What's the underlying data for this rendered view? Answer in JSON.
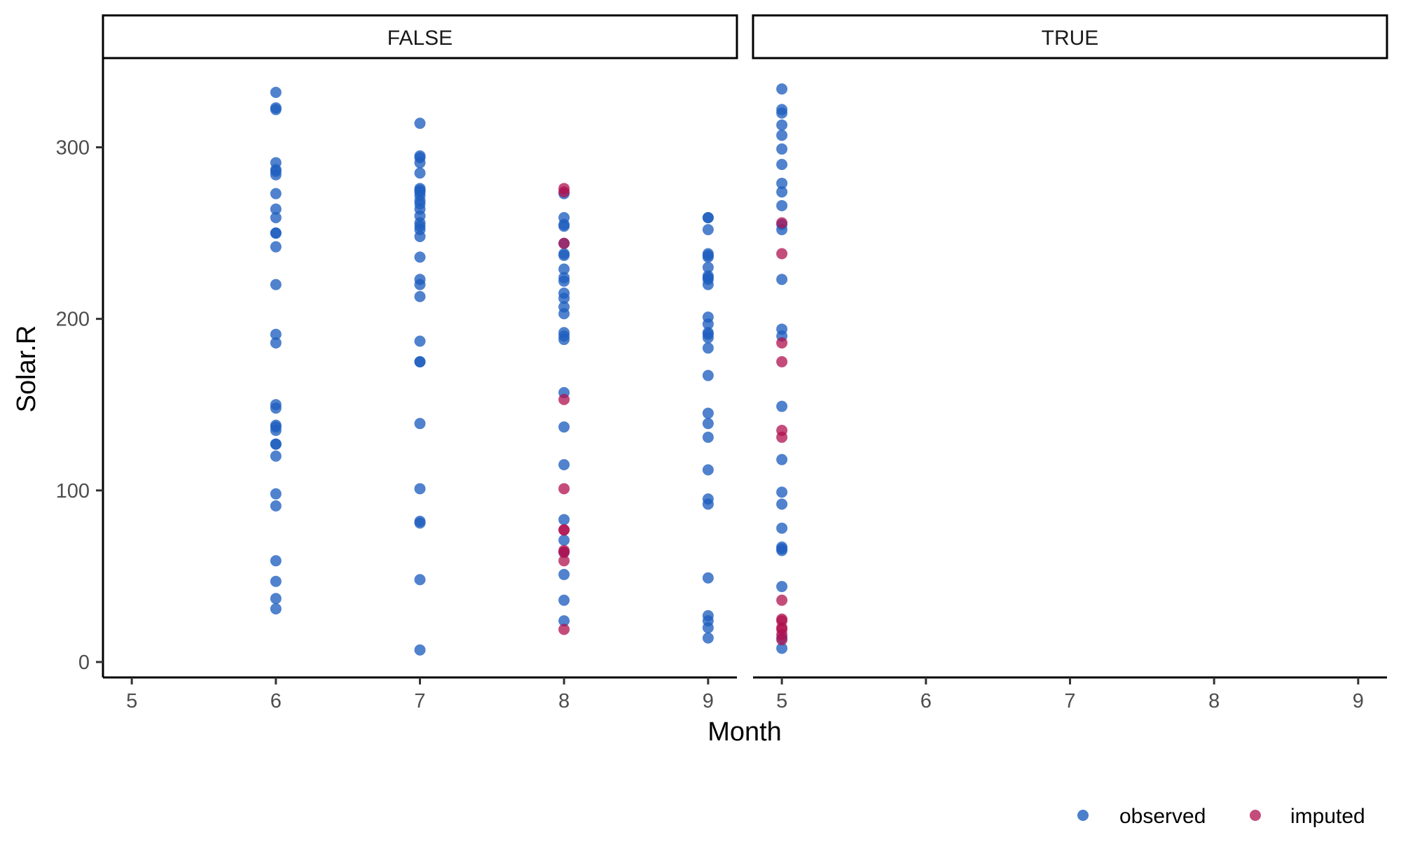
{
  "chart_data": {
    "type": "scatter",
    "facet_var_values": [
      "FALSE",
      "TRUE"
    ],
    "xlabel": "Month",
    "ylabel": "Solar.R",
    "x_ticks": [
      5,
      6,
      7,
      8,
      9
    ],
    "y_ticks": [
      0,
      100,
      200,
      300
    ],
    "xlim": [
      4.8,
      9.2
    ],
    "ylim": [
      -9,
      352
    ],
    "grid": false,
    "legend": {
      "position": "bottom-right",
      "entries": [
        {
          "label": "observed",
          "color": "#1f5fbf"
        },
        {
          "label": "imputed",
          "color": "#b0104f"
        }
      ]
    },
    "panels": [
      {
        "label": "FALSE",
        "series": [
          {
            "name": "observed",
            "color": "#1f5fbf",
            "points": [
              [
                6,
                332
              ],
              [
                6,
                323
              ],
              [
                6,
                322
              ],
              [
                6,
                291
              ],
              [
                6,
                287
              ],
              [
                6,
                286
              ],
              [
                6,
                284
              ],
              [
                6,
                273
              ],
              [
                6,
                264
              ],
              [
                6,
                259
              ],
              [
                6,
                250
              ],
              [
                6,
                250
              ],
              [
                6,
                242
              ],
              [
                6,
                220
              ],
              [
                6,
                191
              ],
              [
                6,
                186
              ],
              [
                6,
                150
              ],
              [
                6,
                148
              ],
              [
                6,
                138
              ],
              [
                6,
                137
              ],
              [
                6,
                135
              ],
              [
                6,
                127
              ],
              [
                6,
                127
              ],
              [
                6,
                120
              ],
              [
                6,
                98
              ],
              [
                6,
                91
              ],
              [
                6,
                59
              ],
              [
                6,
                47
              ],
              [
                6,
                37
              ],
              [
                6,
                31
              ],
              [
                7,
                314
              ],
              [
                7,
                295
              ],
              [
                7,
                294
              ],
              [
                7,
                291
              ],
              [
                7,
                285
              ],
              [
                7,
                276
              ],
              [
                7,
                275
              ],
              [
                7,
                274
              ],
              [
                7,
                272
              ],
              [
                7,
                269
              ],
              [
                7,
                267
              ],
              [
                7,
                264
              ],
              [
                7,
                260
              ],
              [
                7,
                256
              ],
              [
                7,
                254
              ],
              [
                7,
                252
              ],
              [
                7,
                248
              ],
              [
                7,
                236
              ],
              [
                7,
                223
              ],
              [
                7,
                220
              ],
              [
                7,
                213
              ],
              [
                7,
                187
              ],
              [
                7,
                175
              ],
              [
                7,
                175
              ],
              [
                7,
                139
              ],
              [
                7,
                101
              ],
              [
                7,
                82
              ],
              [
                7,
                81
              ],
              [
                7,
                48
              ],
              [
                7,
                7
              ],
              [
                8,
                273
              ],
              [
                8,
                259
              ],
              [
                8,
                255
              ],
              [
                8,
                254
              ],
              [
                8,
                244
              ],
              [
                8,
                238
              ],
              [
                8,
                237
              ],
              [
                8,
                229
              ],
              [
                8,
                224
              ],
              [
                8,
                222
              ],
              [
                8,
                215
              ],
              [
                8,
                212
              ],
              [
                8,
                207
              ],
              [
                8,
                203
              ],
              [
                8,
                192
              ],
              [
                8,
                190
              ],
              [
                8,
                188
              ],
              [
                8,
                157
              ],
              [
                8,
                137
              ],
              [
                8,
                115
              ],
              [
                8,
                83
              ],
              [
                8,
                71
              ],
              [
                8,
                64
              ],
              [
                8,
                51
              ],
              [
                8,
                36
              ],
              [
                8,
                24
              ],
              [
                9,
                259
              ],
              [
                9,
                259
              ],
              [
                9,
                252
              ],
              [
                9,
                238
              ],
              [
                9,
                237
              ],
              [
                9,
                236
              ],
              [
                9,
                230
              ],
              [
                9,
                225
              ],
              [
                9,
                224
              ],
              [
                9,
                223
              ],
              [
                9,
                220
              ],
              [
                9,
                201
              ],
              [
                9,
                197
              ],
              [
                9,
                192
              ],
              [
                9,
                191
              ],
              [
                9,
                189
              ],
              [
                9,
                183
              ],
              [
                9,
                167
              ],
              [
                9,
                145
              ],
              [
                9,
                139
              ],
              [
                9,
                131
              ],
              [
                9,
                112
              ],
              [
                9,
                95
              ],
              [
                9,
                92
              ],
              [
                9,
                49
              ],
              [
                9,
                27
              ],
              [
                9,
                24
              ],
              [
                9,
                20
              ],
              [
                9,
                14
              ]
            ]
          },
          {
            "name": "imputed",
            "color": "#b0104f",
            "points": [
              [
                8,
                276
              ],
              [
                8,
                274
              ],
              [
                8,
                244
              ],
              [
                8,
                153
              ],
              [
                8,
                101
              ],
              [
                8,
                77
              ],
              [
                8,
                77
              ],
              [
                8,
                65
              ],
              [
                8,
                64
              ],
              [
                8,
                59
              ],
              [
                8,
                19
              ]
            ]
          }
        ]
      },
      {
        "label": "TRUE",
        "series": [
          {
            "name": "observed",
            "color": "#1f5fbf",
            "points": [
              [
                5,
                334
              ],
              [
                5,
                322
              ],
              [
                5,
                320
              ],
              [
                5,
                313
              ],
              [
                5,
                307
              ],
              [
                5,
                299
              ],
              [
                5,
                290
              ],
              [
                5,
                279
              ],
              [
                5,
                274
              ],
              [
                5,
                266
              ],
              [
                5,
                255
              ],
              [
                5,
                252
              ],
              [
                5,
                223
              ],
              [
                5,
                194
              ],
              [
                5,
                190
              ],
              [
                5,
                149
              ],
              [
                5,
                118
              ],
              [
                5,
                99
              ],
              [
                5,
                92
              ],
              [
                5,
                78
              ],
              [
                5,
                67
              ],
              [
                5,
                66
              ],
              [
                5,
                65
              ],
              [
                5,
                44
              ],
              [
                5,
                14
              ],
              [
                5,
                8
              ]
            ]
          },
          {
            "name": "imputed",
            "color": "#b0104f",
            "points": [
              [
                5,
                256
              ],
              [
                5,
                238
              ],
              [
                5,
                186
              ],
              [
                5,
                175
              ],
              [
                5,
                135
              ],
              [
                5,
                131
              ],
              [
                5,
                36
              ],
              [
                5,
                25
              ],
              [
                5,
                24
              ],
              [
                5,
                20
              ],
              [
                5,
                19
              ],
              [
                5,
                16
              ],
              [
                5,
                13
              ]
            ]
          }
        ]
      }
    ]
  }
}
